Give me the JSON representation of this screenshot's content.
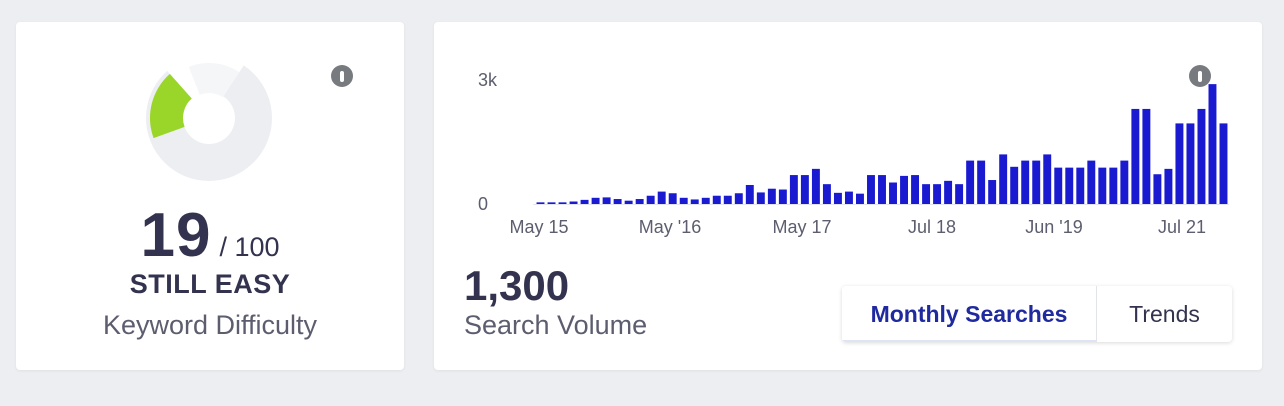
{
  "keyword_difficulty": {
    "score": "19",
    "max": "/ 100",
    "status": "STILL EASY",
    "label": "Keyword Difficulty",
    "info_icon": "info-icon",
    "gauge": {
      "value": 19,
      "max": 100,
      "fill_color": "#9ad62a",
      "track_color": "#eceef2"
    }
  },
  "search_volume": {
    "value": "1,300",
    "label": "Search Volume",
    "info_icon": "info-icon",
    "tabs": [
      {
        "label": "Monthly Searches",
        "active": true
      },
      {
        "label": "Trends",
        "active": false
      }
    ]
  },
  "chart_data": {
    "type": "bar",
    "bar_color": "#1a1ad0",
    "y_ticks": [
      "3k",
      "0"
    ],
    "ylim": [
      0,
      3000
    ],
    "x_tick_labels": [
      "May 15",
      "May '16",
      "May 17",
      "Jul 18",
      "Jun '19",
      "Jul 21"
    ],
    "values": [
      40,
      40,
      40,
      60,
      100,
      150,
      160,
      120,
      80,
      120,
      200,
      300,
      260,
      150,
      110,
      150,
      200,
      200,
      260,
      460,
      280,
      370,
      350,
      700,
      700,
      850,
      480,
      270,
      300,
      250,
      700,
      700,
      520,
      680,
      700,
      480,
      480,
      560,
      480,
      1050,
      1050,
      580,
      1200,
      900,
      1050,
      1050,
      1200,
      880,
      880,
      880,
      1050,
      880,
      880,
      1050,
      2300,
      2300,
      720,
      850,
      1950,
      1950,
      2300,
      2900,
      1950
    ]
  }
}
